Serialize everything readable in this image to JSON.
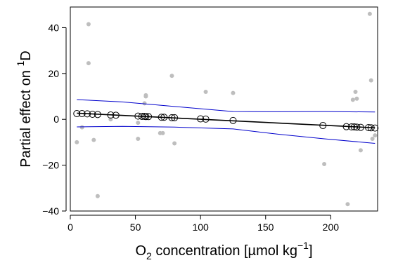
{
  "chart_data": {
    "type": "scatter",
    "xlabel": {
      "prefix": "O",
      "sub": "2",
      "middle": " concentration [µmol kg",
      "sup": "−1",
      "suffix": "]"
    },
    "ylabel": {
      "prefix": "Partial effect on ",
      "sup": "1",
      "suffix": "D"
    },
    "xlim": [
      0,
      236
    ],
    "ylim": [
      -40,
      49
    ],
    "xticks": [
      0,
      50,
      100,
      150,
      200
    ],
    "xtick_labels": [
      "0",
      "50",
      "100",
      "150",
      "200"
    ],
    "yticks": [
      -40,
      -20,
      0,
      20,
      40
    ],
    "ytick_labels": [
      "−40",
      "−20",
      "0",
      "20",
      "40"
    ],
    "grid": false,
    "colors": {
      "residuals": "#bebebe",
      "fit": "#000000",
      "ci": "#0000cc",
      "fitted_points": "#000000"
    },
    "residuals": [
      [
        5,
        -10
      ],
      [
        9,
        -3.5
      ],
      [
        14,
        41.5
      ],
      [
        14,
        24.5
      ],
      [
        18,
        -9
      ],
      [
        21,
        -33.5
      ],
      [
        31,
        0
      ],
      [
        52,
        -1.5
      ],
      [
        52,
        -8.5
      ],
      [
        57,
        7
      ],
      [
        58,
        10
      ],
      [
        58,
        10.5
      ],
      [
        69,
        -6
      ],
      [
        71,
        -6
      ],
      [
        78,
        19
      ],
      [
        80,
        -10.5
      ],
      [
        104,
        12
      ],
      [
        125,
        11.5
      ],
      [
        195,
        -19.5
      ],
      [
        213,
        -37
      ],
      [
        217,
        8.5
      ],
      [
        219,
        12
      ],
      [
        220,
        9
      ],
      [
        223,
        -13.5
      ],
      [
        230,
        46
      ],
      [
        231,
        17
      ],
      [
        232,
        -8.5
      ],
      [
        234,
        -7
      ]
    ],
    "fitted_points": [
      [
        5,
        2.5
      ],
      [
        9,
        2.5
      ],
      [
        13,
        2.4
      ],
      [
        17,
        2.2
      ],
      [
        21,
        2.1
      ],
      [
        31,
        1.9
      ],
      [
        35,
        1.8
      ],
      [
        52,
        1.4
      ],
      [
        55,
        1.3
      ],
      [
        57,
        1.3
      ],
      [
        58,
        1.2
      ],
      [
        60,
        1.2
      ],
      [
        70,
        0.9
      ],
      [
        72,
        0.9
      ],
      [
        78,
        0.7
      ],
      [
        80,
        0.7
      ],
      [
        100,
        0.2
      ],
      [
        104,
        0.1
      ],
      [
        125,
        -0.5
      ],
      [
        194,
        -2.7
      ],
      [
        212,
        -3.2
      ],
      [
        216,
        -3.3
      ],
      [
        218,
        -3.3
      ],
      [
        220,
        -3.4
      ],
      [
        223,
        -3.5
      ],
      [
        229,
        -3.6
      ],
      [
        231,
        -3.7
      ],
      [
        234,
        -3.8
      ]
    ],
    "fit_line": [
      [
        5,
        2.7
      ],
      [
        234,
        -3.7
      ]
    ],
    "ci_upper": [
      [
        5,
        8.6
      ],
      [
        40,
        7.6
      ],
      [
        80,
        5.6
      ],
      [
        125,
        3.4
      ],
      [
        160,
        3.3
      ],
      [
        195,
        3.4
      ],
      [
        234,
        3.2
      ]
    ],
    "ci_lower": [
      [
        5,
        -3.3
      ],
      [
        40,
        -3.1
      ],
      [
        80,
        -3.4
      ],
      [
        125,
        -4.2
      ],
      [
        160,
        -6.5
      ],
      [
        195,
        -8.5
      ],
      [
        234,
        -10.5
      ]
    ]
  }
}
